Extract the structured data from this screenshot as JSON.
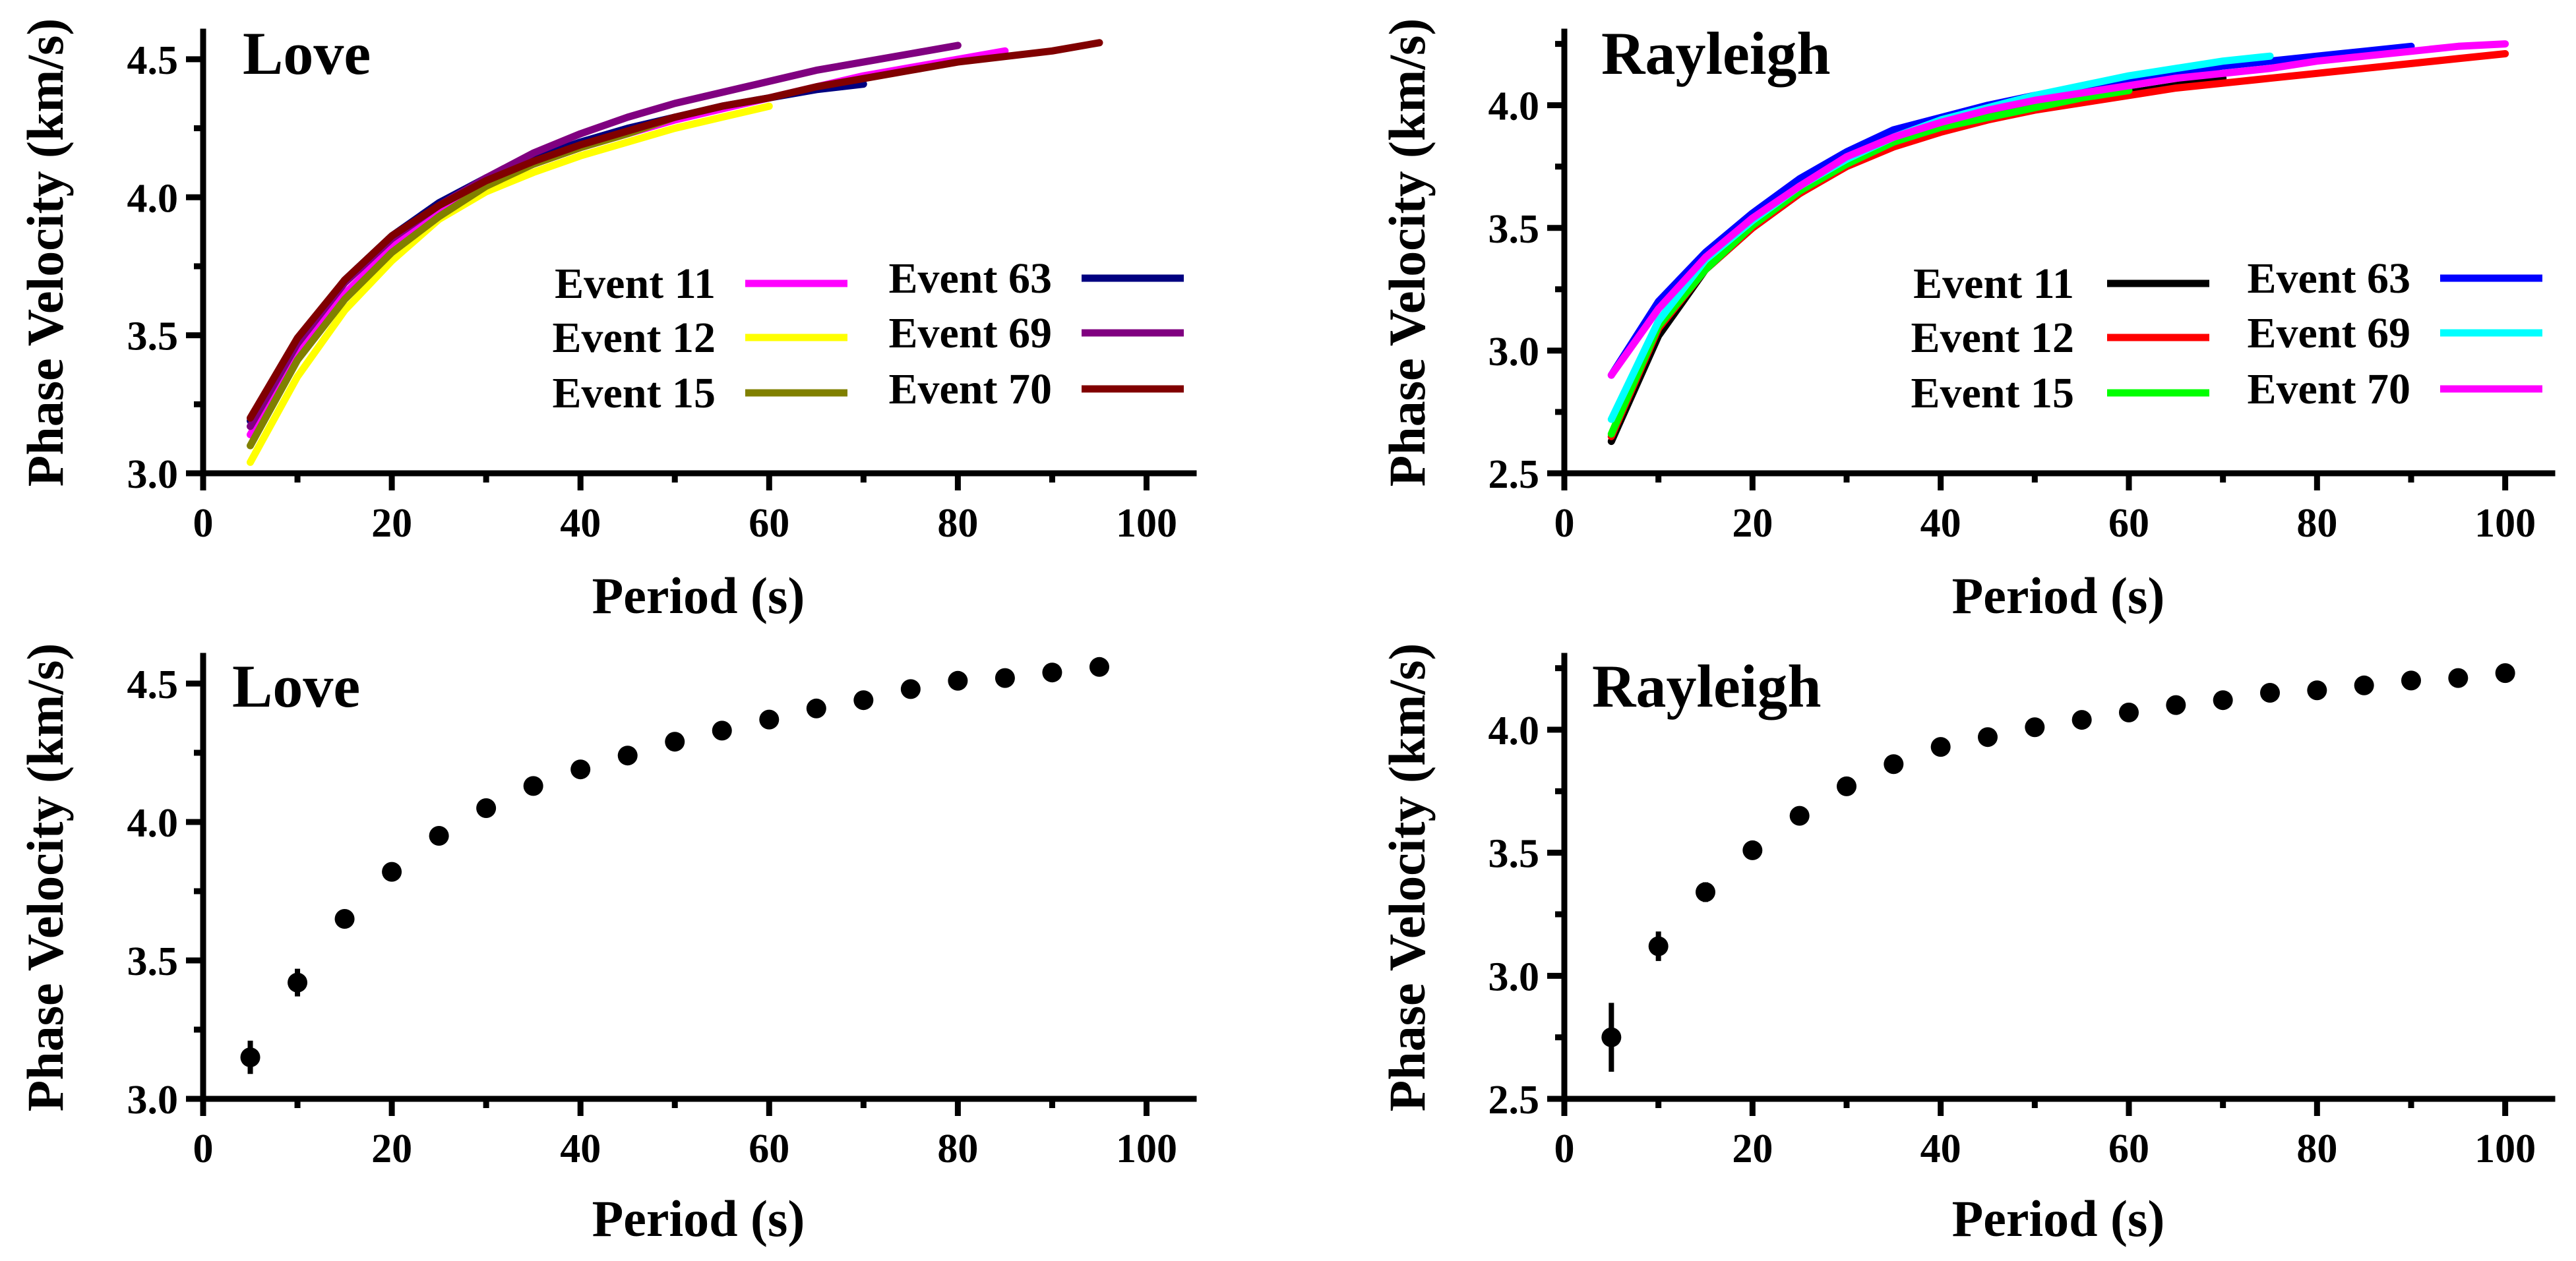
{
  "chart_data": [
    {
      "type": "line",
      "panel": "top-left",
      "title": "Love",
      "xlabel": "Period (s)",
      "ylabel": "Phase Velocity (km/s)",
      "xlim": [
        0,
        105
      ],
      "ylim": [
        3.0,
        4.6
      ],
      "xticks": [
        0,
        20,
        40,
        60,
        80,
        100
      ],
      "yticks": [
        3.0,
        3.5,
        4.0,
        4.5
      ],
      "x_tick_labels": [
        "0",
        "20",
        "40",
        "60",
        "80",
        "100"
      ],
      "y_tick_labels": [
        "3.0",
        "3.5",
        "4.0",
        "4.5"
      ],
      "legend_position": "center-right",
      "series": [
        {
          "name": "Event 11",
          "color": "#ff00ff",
          "x": [
            5,
            10,
            15,
            20,
            25,
            30,
            35,
            40,
            45,
            50,
            55,
            60,
            65,
            70,
            75,
            80,
            85
          ],
          "values": [
            3.14,
            3.43,
            3.65,
            3.82,
            3.95,
            4.05,
            4.12,
            4.18,
            4.23,
            4.28,
            4.32,
            4.36,
            4.4,
            4.44,
            4.47,
            4.5,
            4.53
          ]
        },
        {
          "name": "Event 12",
          "color": "#ffff00",
          "x": [
            5,
            10,
            15,
            20,
            25,
            30,
            35,
            40,
            45,
            50,
            55,
            60
          ],
          "values": [
            3.04,
            3.35,
            3.59,
            3.77,
            3.92,
            4.02,
            4.09,
            4.15,
            4.2,
            4.25,
            4.29,
            4.33
          ]
        },
        {
          "name": "Event 15",
          "color": "#808000",
          "x": [
            5,
            10,
            15,
            20,
            25,
            30,
            35,
            40,
            45,
            50
          ],
          "values": [
            3.1,
            3.41,
            3.63,
            3.8,
            3.93,
            4.04,
            4.12,
            4.18,
            4.23,
            4.29
          ]
        },
        {
          "name": "Event 63",
          "color": "#000080",
          "x": [
            5,
            10,
            15,
            20,
            25,
            30,
            35,
            40,
            45,
            50,
            55,
            60,
            65,
            70
          ],
          "values": [
            3.19,
            3.48,
            3.7,
            3.86,
            3.98,
            4.07,
            4.14,
            4.2,
            4.25,
            4.29,
            4.33,
            4.36,
            4.39,
            4.41
          ]
        },
        {
          "name": "Event 69",
          "color": "#800080",
          "x": [
            5,
            10,
            15,
            20,
            25,
            30,
            35,
            40,
            45,
            50,
            55,
            60,
            65,
            70,
            75,
            80
          ],
          "values": [
            3.17,
            3.47,
            3.69,
            3.85,
            3.97,
            4.07,
            4.16,
            4.23,
            4.29,
            4.34,
            4.38,
            4.42,
            4.46,
            4.49,
            4.52,
            4.55
          ]
        },
        {
          "name": "Event 70",
          "color": "#800000",
          "x": [
            5,
            10,
            15,
            20,
            25,
            30,
            35,
            40,
            45,
            50,
            55,
            60,
            65,
            70,
            75,
            80,
            85,
            90,
            95
          ],
          "values": [
            3.2,
            3.49,
            3.7,
            3.86,
            3.97,
            4.06,
            4.13,
            4.19,
            4.24,
            4.29,
            4.33,
            4.36,
            4.4,
            4.43,
            4.46,
            4.49,
            4.51,
            4.53,
            4.56
          ]
        }
      ]
    },
    {
      "type": "line",
      "panel": "top-right",
      "title": "Rayleigh",
      "xlabel": "Period (s)",
      "ylabel": "Phase Velocity (km/s)",
      "xlim": [
        0,
        105
      ],
      "ylim": [
        2.5,
        4.3
      ],
      "xticks": [
        0,
        20,
        40,
        60,
        80,
        100
      ],
      "yticks": [
        2.5,
        3.0,
        3.5,
        4.0
      ],
      "x_tick_labels": [
        "0",
        "20",
        "40",
        "60",
        "80",
        "100"
      ],
      "y_tick_labels": [
        "2.5",
        "3.0",
        "3.5",
        "4.0"
      ],
      "legend_position": "center-right",
      "series": [
        {
          "name": "Event 11",
          "color": "#000000",
          "x": [
            5,
            10,
            15,
            20,
            25,
            30,
            35,
            40,
            45,
            50,
            55,
            60,
            65,
            70
          ],
          "values": [
            2.63,
            3.06,
            3.33,
            3.5,
            3.64,
            3.76,
            3.85,
            3.91,
            3.96,
            3.99,
            4.02,
            4.05,
            4.08,
            4.11
          ]
        },
        {
          "name": "Event 12",
          "color": "#ff0000",
          "x": [
            5,
            10,
            15,
            20,
            25,
            30,
            35,
            40,
            45,
            50,
            55,
            60,
            65,
            70,
            75,
            80,
            85,
            90,
            95,
            100
          ],
          "values": [
            2.65,
            3.09,
            3.33,
            3.5,
            3.64,
            3.75,
            3.83,
            3.89,
            3.94,
            3.98,
            4.01,
            4.04,
            4.07,
            4.09,
            4.11,
            4.13,
            4.15,
            4.17,
            4.19,
            4.21
          ]
        },
        {
          "name": "Event 15",
          "color": "#00ff00",
          "x": [
            5,
            10,
            15,
            20,
            25,
            30,
            35,
            40,
            45,
            50,
            55,
            60
          ],
          "values": [
            2.66,
            3.1,
            3.33,
            3.51,
            3.65,
            3.76,
            3.85,
            3.91,
            3.95,
            3.99,
            4.03,
            4.06
          ]
        },
        {
          "name": "Event 63",
          "color": "#0000ff",
          "x": [
            5,
            10,
            15,
            20,
            25,
            30,
            35,
            40,
            45,
            50,
            55,
            60,
            65,
            70,
            75,
            80,
            85,
            90
          ],
          "values": [
            2.9,
            3.2,
            3.4,
            3.56,
            3.7,
            3.81,
            3.9,
            3.95,
            4.0,
            4.04,
            4.07,
            4.1,
            4.13,
            4.16,
            4.18,
            4.2,
            4.22,
            4.24
          ]
        },
        {
          "name": "Event 69",
          "color": "#00ffff",
          "x": [
            5,
            10,
            15,
            20,
            25,
            30,
            35,
            40,
            45,
            50,
            55,
            60,
            65,
            70,
            75
          ],
          "values": [
            2.72,
            3.12,
            3.37,
            3.53,
            3.67,
            3.78,
            3.87,
            3.94,
            3.99,
            4.04,
            4.08,
            4.12,
            4.15,
            4.18,
            4.2
          ]
        },
        {
          "name": "Event 70",
          "color": "#ff00ff",
          "x": [
            5,
            10,
            15,
            20,
            25,
            30,
            35,
            40,
            45,
            50,
            55,
            60,
            65,
            70,
            75,
            80,
            85,
            90,
            95,
            100
          ],
          "values": [
            2.9,
            3.17,
            3.38,
            3.54,
            3.67,
            3.79,
            3.87,
            3.93,
            3.98,
            4.02,
            4.05,
            4.08,
            4.11,
            4.13,
            4.15,
            4.18,
            4.2,
            4.22,
            4.24,
            4.25
          ]
        }
      ]
    },
    {
      "type": "scatter",
      "panel": "bottom-left",
      "title": "Love",
      "xlabel": "Period (s)",
      "ylabel": "Phase Velocity (km/s)",
      "xlim": [
        0,
        105
      ],
      "ylim": [
        3.0,
        4.6
      ],
      "xticks": [
        0,
        20,
        40,
        60,
        80,
        100
      ],
      "yticks": [
        3.0,
        3.5,
        4.0,
        4.5
      ],
      "x_tick_labels": [
        "0",
        "20",
        "40",
        "60",
        "80",
        "100"
      ],
      "y_tick_labels": [
        "3.0",
        "3.5",
        "4.0",
        "4.5"
      ],
      "x": [
        5,
        10,
        15,
        20,
        25,
        30,
        35,
        40,
        45,
        50,
        55,
        60,
        65,
        70,
        75,
        80,
        85,
        90,
        95
      ],
      "values": [
        3.15,
        3.42,
        3.65,
        3.82,
        3.95,
        4.05,
        4.13,
        4.19,
        4.24,
        4.29,
        4.33,
        4.37,
        4.41,
        4.44,
        4.48,
        4.51,
        4.52,
        4.54,
        4.56
      ],
      "errors": [
        0.06,
        0.05,
        0.03,
        0.03,
        0.03,
        0.03,
        0.03,
        0.03,
        0.03,
        0.02,
        0.03,
        0.03,
        0.03,
        0.03,
        0.03,
        0.03,
        0.03,
        0.02,
        0.02
      ]
    },
    {
      "type": "scatter",
      "panel": "bottom-right",
      "title": "Rayleigh",
      "xlabel": "Period (s)",
      "ylabel": "Phase Velocity (km/s)",
      "xlim": [
        0,
        105
      ],
      "ylim": [
        2.5,
        4.3
      ],
      "xticks": [
        0,
        20,
        40,
        60,
        80,
        100
      ],
      "yticks": [
        2.5,
        3.0,
        3.5,
        4.0
      ],
      "x_tick_labels": [
        "0",
        "20",
        "40",
        "60",
        "80",
        "100"
      ],
      "y_tick_labels": [
        "2.5",
        "3.0",
        "3.5",
        "4.0"
      ],
      "x": [
        5,
        10,
        15,
        20,
        25,
        30,
        35,
        40,
        45,
        50,
        55,
        60,
        65,
        70,
        75,
        80,
        85,
        90,
        95,
        100
      ],
      "values": [
        2.75,
        3.12,
        3.34,
        3.51,
        3.65,
        3.77,
        3.86,
        3.93,
        3.97,
        4.01,
        4.04,
        4.07,
        4.1,
        4.12,
        4.15,
        4.16,
        4.18,
        4.2,
        4.21,
        4.23
      ],
      "errors": [
        0.14,
        0.06,
        0.04,
        0.03,
        0.03,
        0.03,
        0.03,
        0.03,
        0.03,
        0.03,
        0.03,
        0.02,
        0.02,
        0.02,
        0.02,
        0.02,
        0.02,
        0.02,
        0.02,
        0.02
      ]
    }
  ]
}
